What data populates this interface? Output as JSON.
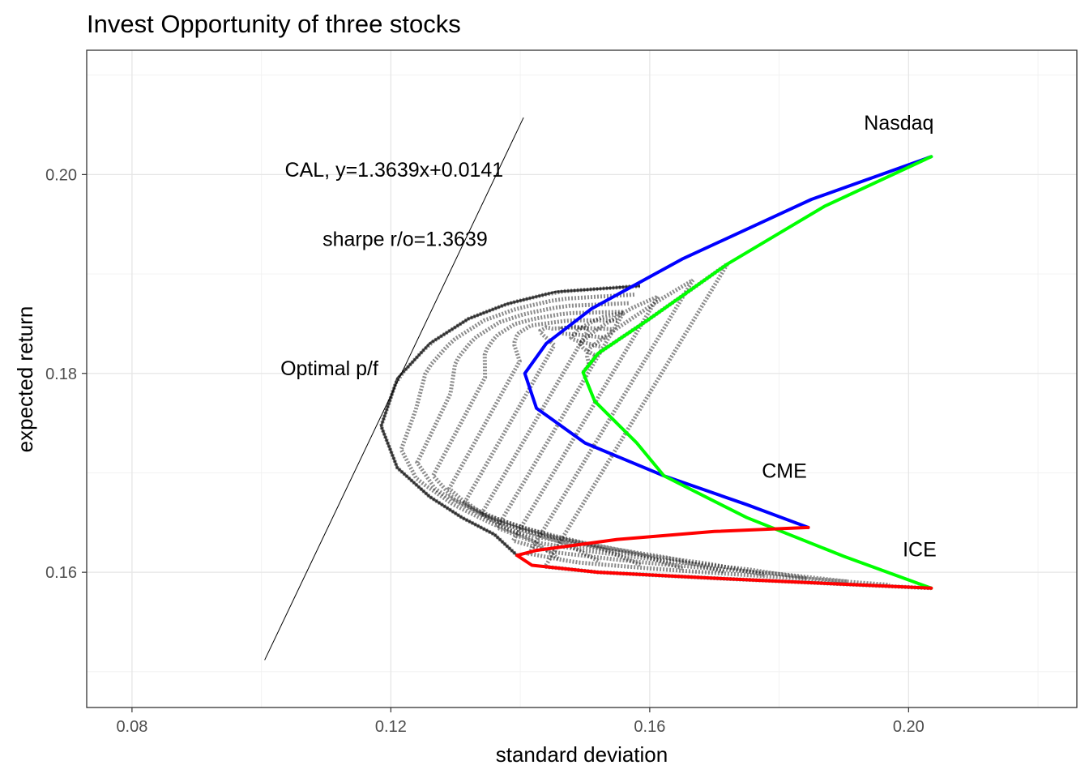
{
  "chart_data": {
    "type": "scatter",
    "title": "Invest Opportunity of three stocks",
    "xlabel": "standard deviation",
    "ylabel": "expected return",
    "xlim": [
      0.073,
      0.226
    ],
    "ylim": [
      0.1464,
      0.2125
    ],
    "x_ticks": [
      0.08,
      0.12,
      0.16,
      0.2
    ],
    "x_tick_labels": [
      "0.08",
      "0.12",
      "0.16",
      "0.20"
    ],
    "y_ticks": [
      0.16,
      0.18,
      0.2
    ],
    "y_tick_labels": [
      "0.16",
      "0.18",
      "0.20"
    ],
    "grid": true,
    "legend": "none",
    "assets": [
      {
        "name": "Nasdaq",
        "sd": 0.2035,
        "ret": 0.2018
      },
      {
        "name": "CME",
        "sd": 0.1845,
        "ret": 0.1645
      },
      {
        "name": "ICE",
        "sd": 0.2035,
        "ret": 0.1584
      }
    ],
    "series": [
      {
        "name": "Nasdaq-CME frontier",
        "color": "#0000ff",
        "points": [
          [
            0.2035,
            0.2018
          ],
          [
            0.185,
            0.1975
          ],
          [
            0.165,
            0.1915
          ],
          [
            0.151,
            0.1865
          ],
          [
            0.144,
            0.183
          ],
          [
            0.1407,
            0.18
          ],
          [
            0.1425,
            0.1765
          ],
          [
            0.15,
            0.173
          ],
          [
            0.1622,
            0.1697
          ],
          [
            0.175,
            0.1668
          ],
          [
            0.1845,
            0.1645
          ]
        ]
      },
      {
        "name": "Nasdaq-ICE frontier",
        "color": "#00ff00",
        "points": [
          [
            0.2035,
            0.2018
          ],
          [
            0.187,
            0.1968
          ],
          [
            0.172,
            0.191
          ],
          [
            0.16,
            0.1855
          ],
          [
            0.152,
            0.182
          ],
          [
            0.1497,
            0.1801
          ],
          [
            0.1515,
            0.1772
          ],
          [
            0.158,
            0.173
          ],
          [
            0.1622,
            0.1697
          ],
          [
            0.175,
            0.1655
          ],
          [
            0.19,
            0.1616
          ],
          [
            0.2035,
            0.1584
          ]
        ]
      },
      {
        "name": "CME-ICE frontier",
        "color": "#ff0000",
        "points": [
          [
            0.1845,
            0.1645
          ],
          [
            0.17,
            0.1641
          ],
          [
            0.155,
            0.1633
          ],
          [
            0.1425,
            0.1622
          ],
          [
            0.1395,
            0.1617
          ],
          [
            0.1418,
            0.1607
          ],
          [
            0.152,
            0.16
          ],
          [
            0.17,
            0.1594
          ],
          [
            0.19,
            0.1588
          ],
          [
            0.2035,
            0.1584
          ]
        ]
      }
    ],
    "portfolio_cloud": {
      "color": "#000000",
      "min_variance_sd": 0.1185,
      "min_variance_ret": 0.1747,
      "upper_envelope": [
        [
          0.1185,
          0.1747
        ],
        [
          0.121,
          0.1795
        ],
        [
          0.126,
          0.183
        ],
        [
          0.132,
          0.1855
        ],
        [
          0.138,
          0.187
        ],
        [
          0.1455,
          0.1882
        ],
        [
          0.1585,
          0.1888
        ]
      ],
      "lower_envelope": [
        [
          0.1185,
          0.1747
        ],
        [
          0.121,
          0.1705
        ],
        [
          0.126,
          0.1676
        ],
        [
          0.131,
          0.1655
        ],
        [
          0.136,
          0.1638
        ],
        [
          0.1395,
          0.1617
        ]
      ]
    },
    "cal": {
      "slope": 1.3639,
      "intercept": 0.0141,
      "x_range": [
        0.1005,
        0.1405
      ]
    },
    "annotations": [
      {
        "text": "Nasdaq",
        "x": 0.1985,
        "y": 0.2045
      },
      {
        "text": "CME",
        "x": 0.1808,
        "y": 0.1695
      },
      {
        "text": "ICE",
        "x": 0.2017,
        "y": 0.1616
      },
      {
        "text": "CAL, y=1.3639x+0.0141",
        "x": 0.1205,
        "y": 0.1998
      },
      {
        "text": "sharpe r/o=1.3639",
        "x": 0.1222,
        "y": 0.1928
      },
      {
        "text": "Optimal p/f",
        "x": 0.1105,
        "y": 0.1798
      }
    ]
  }
}
